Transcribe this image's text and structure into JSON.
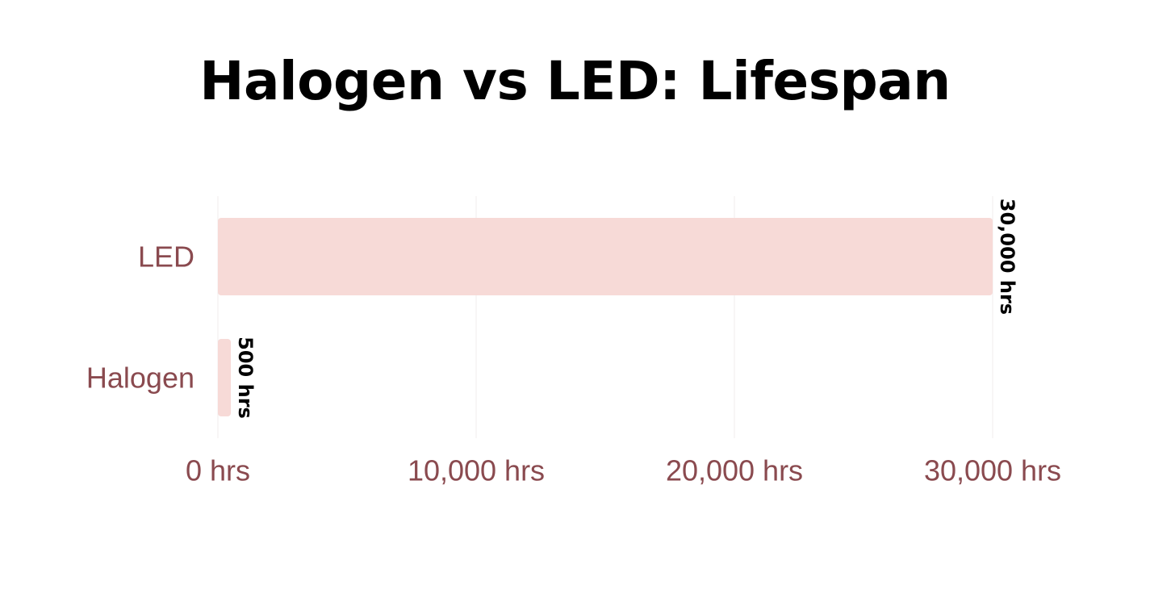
{
  "chart_data": {
    "type": "bar",
    "orientation": "horizontal",
    "title": "Halogen vs LED: Lifespan",
    "categories": [
      "LED",
      "Halogen"
    ],
    "values": [
      30000,
      500
    ],
    "data_labels": [
      "30,000 hrs",
      "500 hrs"
    ],
    "xlim": [
      0,
      30000
    ],
    "x_ticks": [
      0,
      10000,
      20000,
      30000
    ],
    "x_tick_labels": [
      "0 hrs",
      "10,000 hrs",
      "20,000 hrs",
      "30,000 hrs"
    ],
    "xlabel": "",
    "ylabel": "",
    "grid": true,
    "legend": "none",
    "colors": {
      "bar": "#f7dad7",
      "category_text": "#8a4a4f",
      "tick_text": "#8a4a4f",
      "grid": "#f1ecec",
      "data_label_text": "#000000"
    }
  }
}
